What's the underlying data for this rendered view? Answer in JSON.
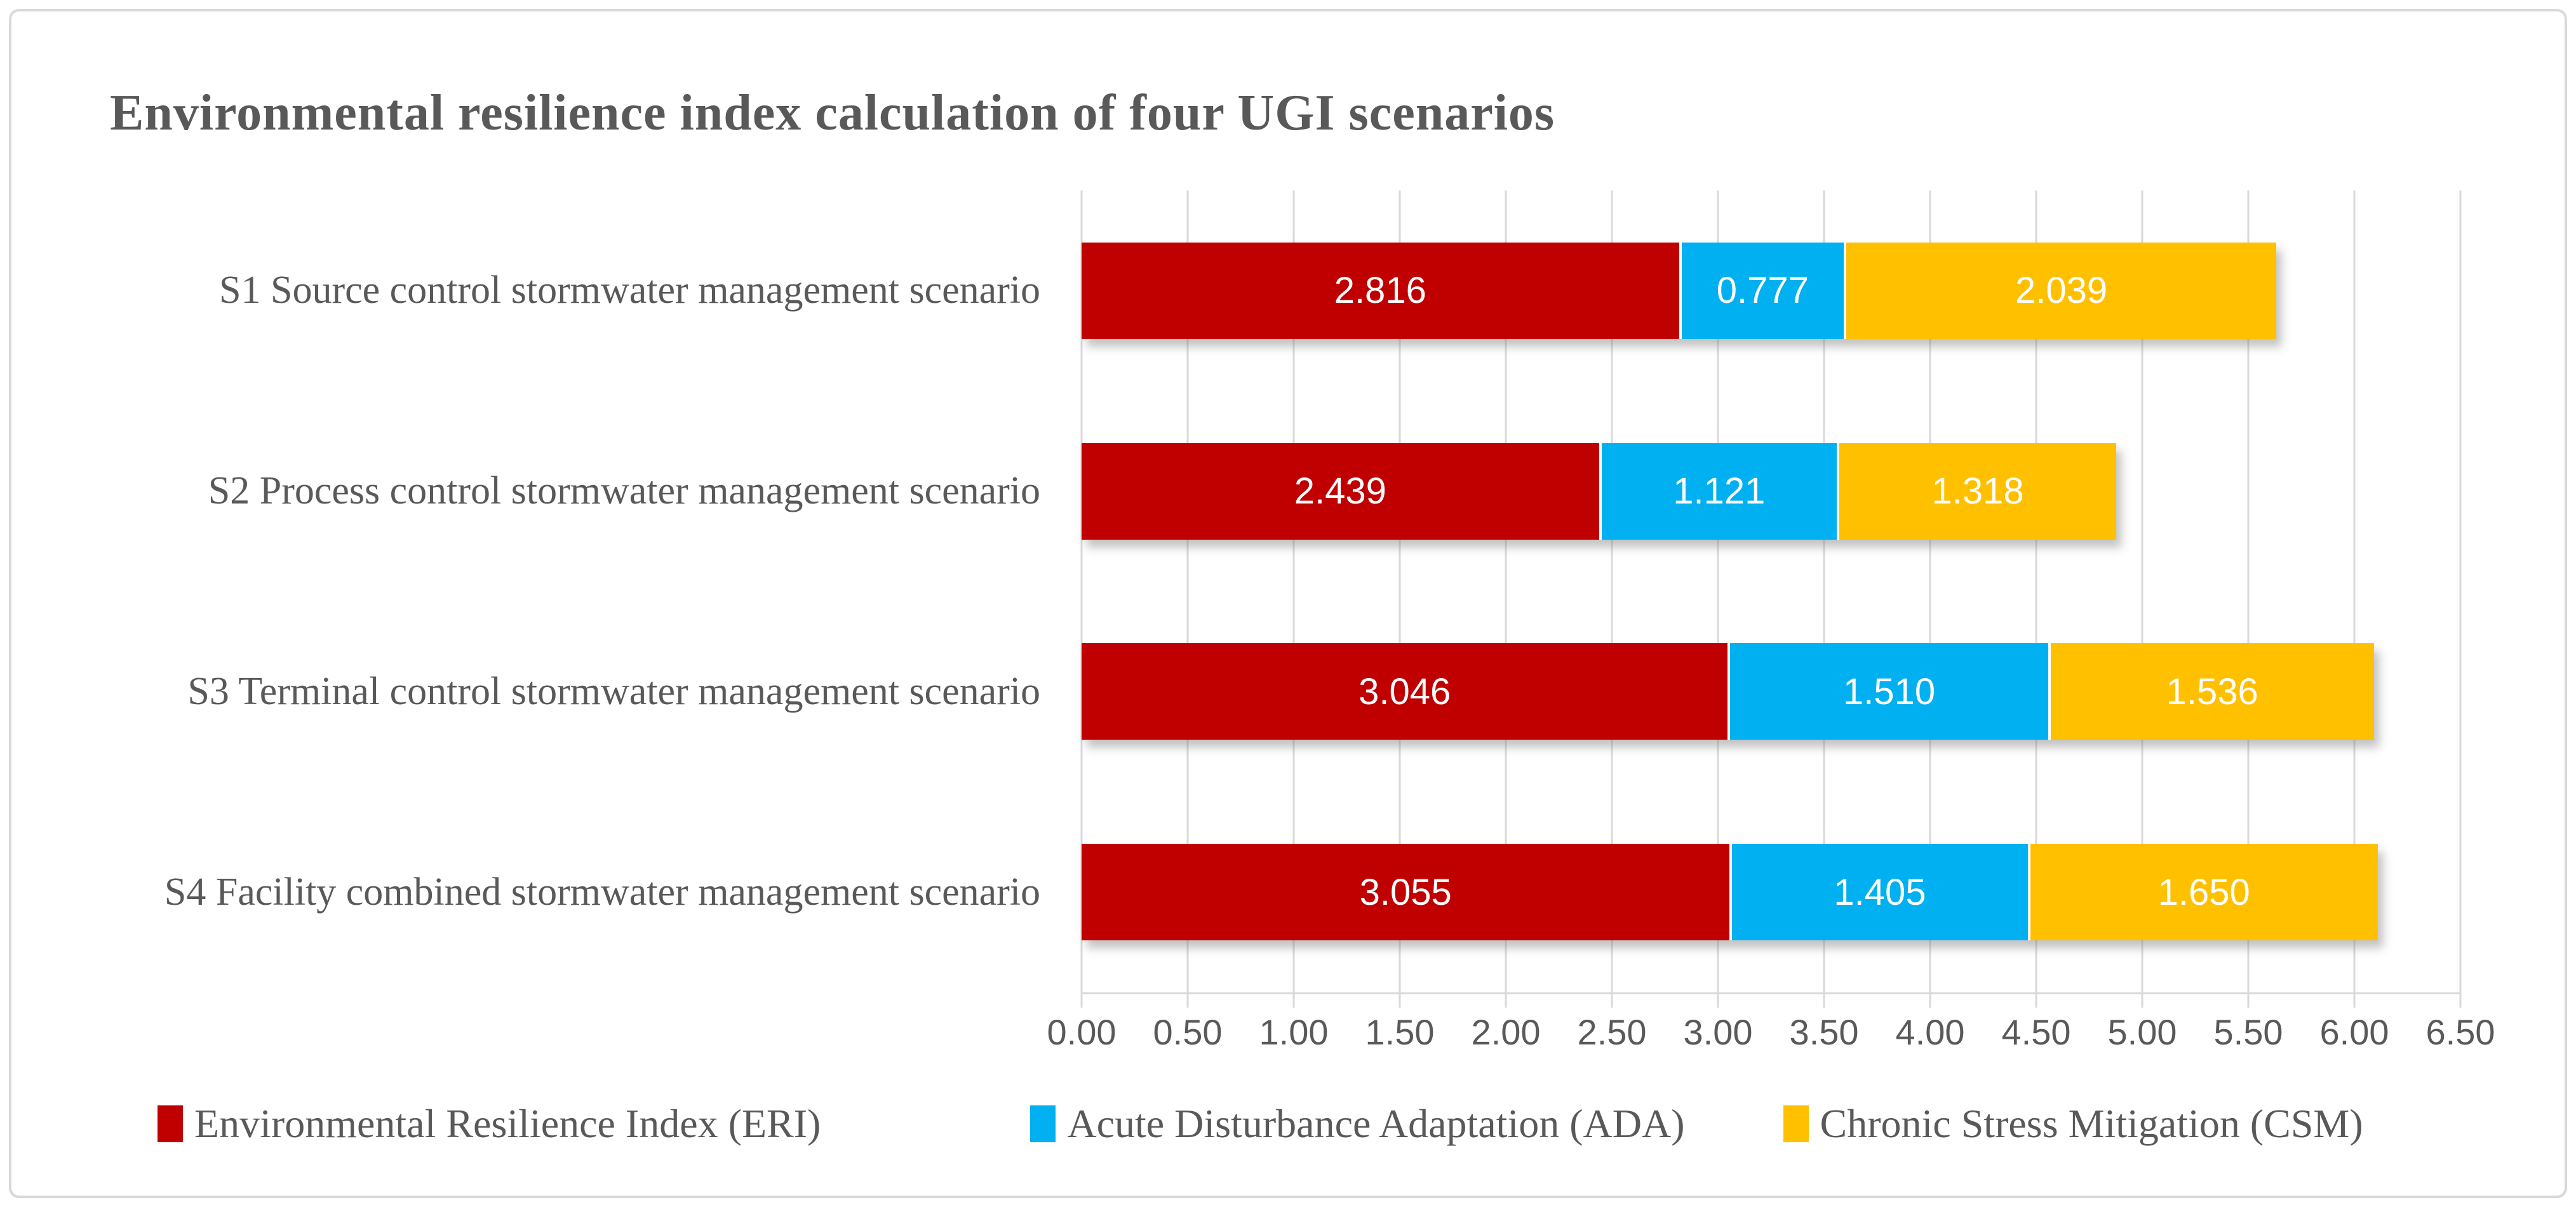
{
  "chart_data": {
    "type": "bar",
    "orientation": "horizontal",
    "stacked": true,
    "title": "Environmental resilience index calculation of four UGI scenarios",
    "categories": [
      "S1 Source control stormwater management scenario",
      "S2 Process control stormwater management scenario",
      "S3 Terminal control stormwater management scenario",
      "S4 Facility combined stormwater management scenario"
    ],
    "series": [
      {
        "key": "eri",
        "name": "Environmental Resilience Index (ERI)",
        "color": "#C00000",
        "values": [
          2.816,
          2.439,
          3.046,
          3.055
        ],
        "labels": [
          "2.816",
          "2.439",
          "3.046",
          "3.055"
        ]
      },
      {
        "key": "ada",
        "name": "Acute Disturbance Adaptation (ADA)",
        "color": "#00B0F0",
        "values": [
          0.777,
          1.121,
          1.51,
          1.405
        ],
        "labels": [
          "0.777",
          "1.121",
          "1.510",
          "1.405"
        ]
      },
      {
        "key": "csm",
        "name": "Chronic Stress Mitigation (CSM)",
        "color": "#FFC000",
        "values": [
          2.039,
          1.318,
          1.536,
          1.65
        ],
        "labels": [
          "2.039",
          "1.318",
          "1.536",
          "1.650"
        ]
      }
    ],
    "xlim": [
      0,
      6.5
    ],
    "x_ticks": [
      "0.00",
      "0.50",
      "1.00",
      "1.50",
      "2.00",
      "2.50",
      "3.00",
      "3.50",
      "4.00",
      "4.50",
      "5.00",
      "5.50",
      "6.00",
      "6.50"
    ],
    "grid": "vertical",
    "legend_position": "bottom",
    "colors": {
      "grid": "#D9D9D9",
      "text": "#595959",
      "value_text": "#FFFFFF",
      "frame_border": "#D9D9D9"
    }
  }
}
